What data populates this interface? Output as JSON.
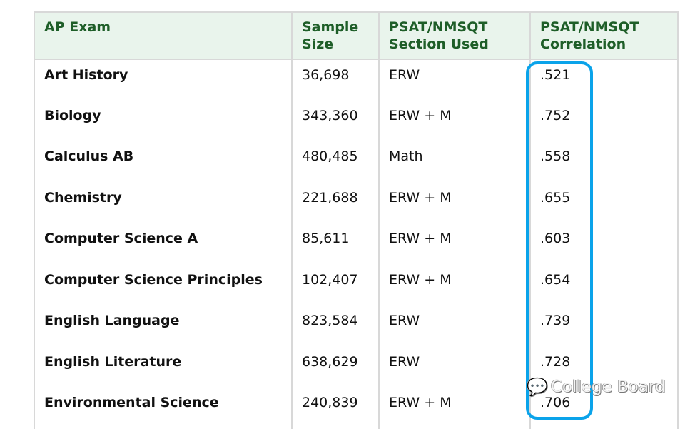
{
  "table": {
    "headers": [
      "AP Exam",
      "Sample Size",
      "PSAT/NMSQT Section Used",
      "PSAT/NMSQT Correlation"
    ],
    "rows": [
      [
        "Art History",
        "36,698",
        "ERW",
        ".521"
      ],
      [
        "Biology",
        "343,360",
        "ERW + M",
        ".752"
      ],
      [
        "Calculus AB",
        "480,485",
        "Math",
        ".558"
      ],
      [
        "Chemistry",
        "221,688",
        "ERW + M",
        ".655"
      ],
      [
        "Computer Science A",
        "85,611",
        "ERW + M",
        ".603"
      ],
      [
        "Computer Science Principles",
        "102,407",
        "ERW + M",
        ".654"
      ],
      [
        "English Language",
        "823,584",
        "ERW",
        ".739"
      ],
      [
        "English Literature",
        "638,629",
        "ERW",
        ".728"
      ],
      [
        "Environmental Science",
        "240,839",
        "ERW + M",
        ".706"
      ]
    ]
  },
  "highlight_color": "#0aa3ea",
  "header_color": "#1e5e28",
  "watermark": {
    "icon": "wechat-icon",
    "text": "College Board"
  }
}
